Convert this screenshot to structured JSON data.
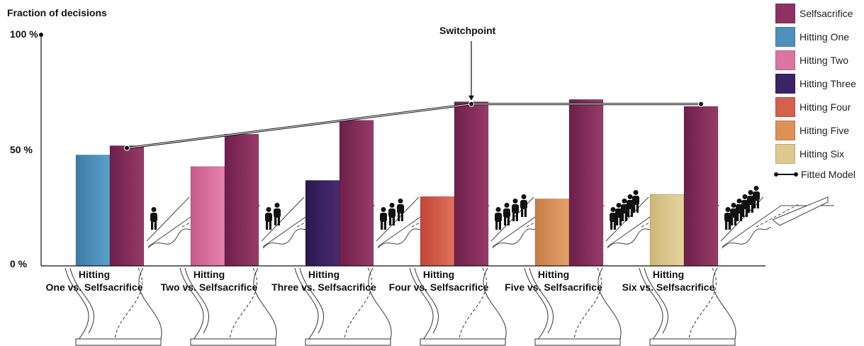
{
  "chart_data": {
    "type": "bar",
    "ylabel": "Fraction of decisions",
    "yticks": [
      "0 %",
      "50 %",
      "100 %"
    ],
    "ylim": [
      0,
      100
    ],
    "categories": [
      {
        "line1": "Hitting",
        "line2": "One vs. Selfsacrifice"
      },
      {
        "line1": "Hitting",
        "line2": "Two vs. Selfsacrifice"
      },
      {
        "line1": "Hitting",
        "line2": "Three vs. Selfsacrifice"
      },
      {
        "line1": "Hitting",
        "line2": "Four vs. Selfsacrifice"
      },
      {
        "line1": "Hitting",
        "line2": "Five vs. Selfsacrifice"
      },
      {
        "line1": "Hitting",
        "line2": "Six vs. Selfsacrifice"
      }
    ],
    "series": [
      {
        "name": "Hitting",
        "values": [
          48,
          43,
          37,
          30,
          29,
          31
        ]
      },
      {
        "name": "Selfsacrifice",
        "values": [
          52,
          57,
          63,
          71,
          72,
          69
        ]
      }
    ],
    "hitting_colors": [
      [
        "#3f7ba6",
        "#5aa0cc"
      ],
      [
        "#c85a8c",
        "#e583ad"
      ],
      [
        "#2a1850",
        "#4b2b72"
      ],
      [
        "#c2463a",
        "#e0705a"
      ],
      [
        "#c87b45",
        "#e6a26a"
      ],
      [
        "#cdb778",
        "#e6d49c"
      ]
    ],
    "selfsacrifice_colors": [
      "#6e1f4a",
      "#973b68"
    ],
    "fitted_model": {
      "name": "Fitted Model",
      "points": [
        [
          0,
          51
        ],
        [
          3,
          70
        ],
        [
          5,
          70
        ]
      ]
    },
    "annotation": {
      "text": "Switchpoint",
      "category_index": 3
    }
  },
  "legend": [
    {
      "label": "Selfsacrifice",
      "color": "#8e3263"
    },
    {
      "label": "Hitting One",
      "color": "#4f8fbd"
    },
    {
      "label": "Hitting Two",
      "color": "#dc75a3"
    },
    {
      "label": "Hitting Three",
      "color": "#3c2266"
    },
    {
      "label": "Hitting Four",
      "color": "#d5604c"
    },
    {
      "label": "Hitting Five",
      "color": "#dc9157"
    },
    {
      "label": "Hitting Six",
      "color": "#ddc98e"
    },
    {
      "label": "Fitted Model",
      "marker": "line"
    }
  ]
}
